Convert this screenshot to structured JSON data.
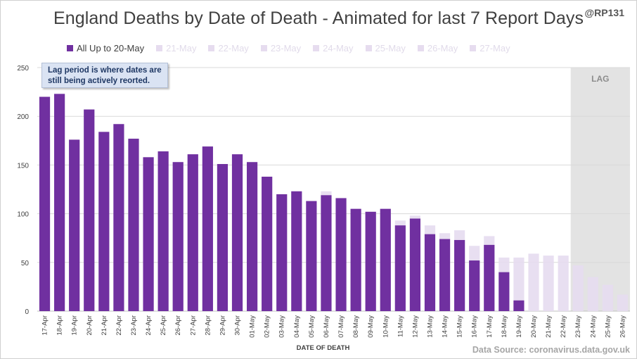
{
  "header": {
    "title": "England Deaths by Date of Death - Animated for last 7 Report Days",
    "handle": "@RP131"
  },
  "note": {
    "line1": "Lag period is where dates are",
    "line2": "still being actively reorted."
  },
  "source": "Data Source: coronavirus.data.gov.uk",
  "colors": {
    "main": "#7030a0",
    "faded": "#e6dcef",
    "lag_shade": "#d9d9d9",
    "grid": "#d9d9d9"
  },
  "chart_data": {
    "type": "bar",
    "xlabel": "DATE OF DEATH",
    "ylabel": "",
    "ylim": [
      0,
      250
    ],
    "yticks": [
      0,
      50,
      100,
      150,
      200,
      250
    ],
    "grid": true,
    "lag_label": "LAG",
    "lag_start": "23-May",
    "legend": {
      "placement": "top",
      "entries": [
        "All Up to 20-May",
        "21-May",
        "22-May",
        "23-May",
        "24-May",
        "25-May",
        "26-May",
        "27-May"
      ]
    },
    "categories": [
      "17-Apr",
      "18-Apr",
      "19-Apr",
      "20-Apr",
      "21-Apr",
      "22-Apr",
      "23-Apr",
      "24-Apr",
      "25-Apr",
      "26-Apr",
      "27-Apr",
      "28-Apr",
      "29-Apr",
      "30-Apr",
      "01-May",
      "02-May",
      "03-May",
      "04-May",
      "05-May",
      "06-May",
      "07-May",
      "08-May",
      "09-May",
      "10-May",
      "11-May",
      "12-May",
      "13-May",
      "14-May",
      "15-May",
      "16-May",
      "17-May",
      "18-May",
      "19-May",
      "20-May",
      "21-May",
      "22-May",
      "23-May",
      "24-May",
      "25-May",
      "26-May"
    ],
    "series": [
      {
        "name": "All Up to 20-May",
        "values": [
          220,
          223,
          176,
          207,
          184,
          192,
          177,
          158,
          164,
          153,
          161,
          169,
          151,
          161,
          153,
          138,
          120,
          123,
          113,
          119,
          116,
          105,
          102,
          105,
          88,
          95,
          79,
          74,
          73,
          52,
          68,
          40,
          11,
          0,
          0,
          0,
          0,
          0,
          0,
          0
        ]
      },
      {
        "name": "27-May",
        "values": [
          220,
          223,
          176,
          207,
          184,
          192,
          177,
          158,
          164,
          153,
          161,
          169,
          151,
          161,
          153,
          138,
          120,
          123,
          113,
          123,
          116,
          105,
          102,
          105,
          93,
          98,
          88,
          80,
          83,
          67,
          77,
          55,
          55,
          59,
          57,
          57,
          47,
          35,
          27,
          17
        ]
      }
    ]
  }
}
